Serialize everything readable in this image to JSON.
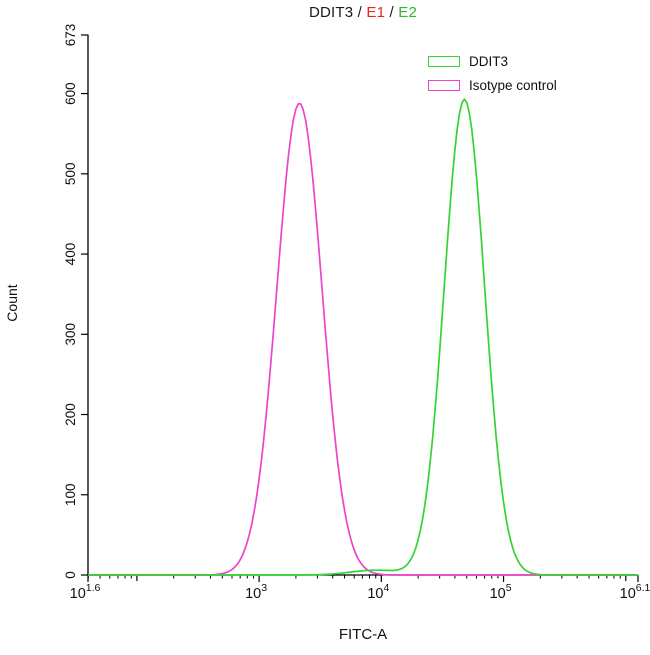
{
  "title": {
    "parts": [
      {
        "text": "DDIT3",
        "color": "#1a1a1a"
      },
      {
        "text": " / ",
        "color": "#1a1a1a"
      },
      {
        "text": "E1",
        "color": "#e8271b"
      },
      {
        "text": " / ",
        "color": "#1a1a1a"
      },
      {
        "text": "E2",
        "color": "#2fb52f"
      }
    ]
  },
  "legend": {
    "items": [
      {
        "label": "DDIT3",
        "color": "#35d435"
      },
      {
        "label": "Isotype control",
        "color": "#ee44cc"
      }
    ]
  },
  "chart_data": {
    "type": "line",
    "title": "DDIT3 / E1 / E2",
    "xlabel": "FITC-A",
    "ylabel": "Count",
    "x_scale": "log10",
    "xlim_exp": [
      1.6,
      6.1
    ],
    "ylim": [
      0,
      673
    ],
    "y_ticks": [
      0,
      100,
      200,
      300,
      400,
      500,
      600,
      673
    ],
    "x_major_ticks": [
      {
        "exp": 1.6,
        "base": "10",
        "sup": "1.6"
      },
      {
        "exp": 3,
        "base": "10",
        "sup": "3"
      },
      {
        "exp": 4,
        "base": "10",
        "sup": "4"
      },
      {
        "exp": 5,
        "base": "10",
        "sup": "5"
      },
      {
        "exp": 6.1,
        "base": "10",
        "sup": "6.1"
      }
    ],
    "grid": false,
    "legend_position": "top-right",
    "series": [
      {
        "name": "Isotype control",
        "color": "#ee44cc",
        "peak": {
          "x": 2100,
          "count": 588
        },
        "components": [
          {
            "mu_log10": 3.33,
            "sigma_log10": 0.185,
            "amplitude": 588
          }
        ]
      },
      {
        "name": "DDIT3",
        "color": "#35d435",
        "peak": {
          "x": 48000,
          "count": 593
        },
        "components": [
          {
            "mu_log10": 4.68,
            "sigma_log10": 0.165,
            "amplitude": 593
          },
          {
            "mu_log10": 3.95,
            "sigma_log10": 0.2,
            "amplitude": 6
          }
        ]
      }
    ]
  }
}
